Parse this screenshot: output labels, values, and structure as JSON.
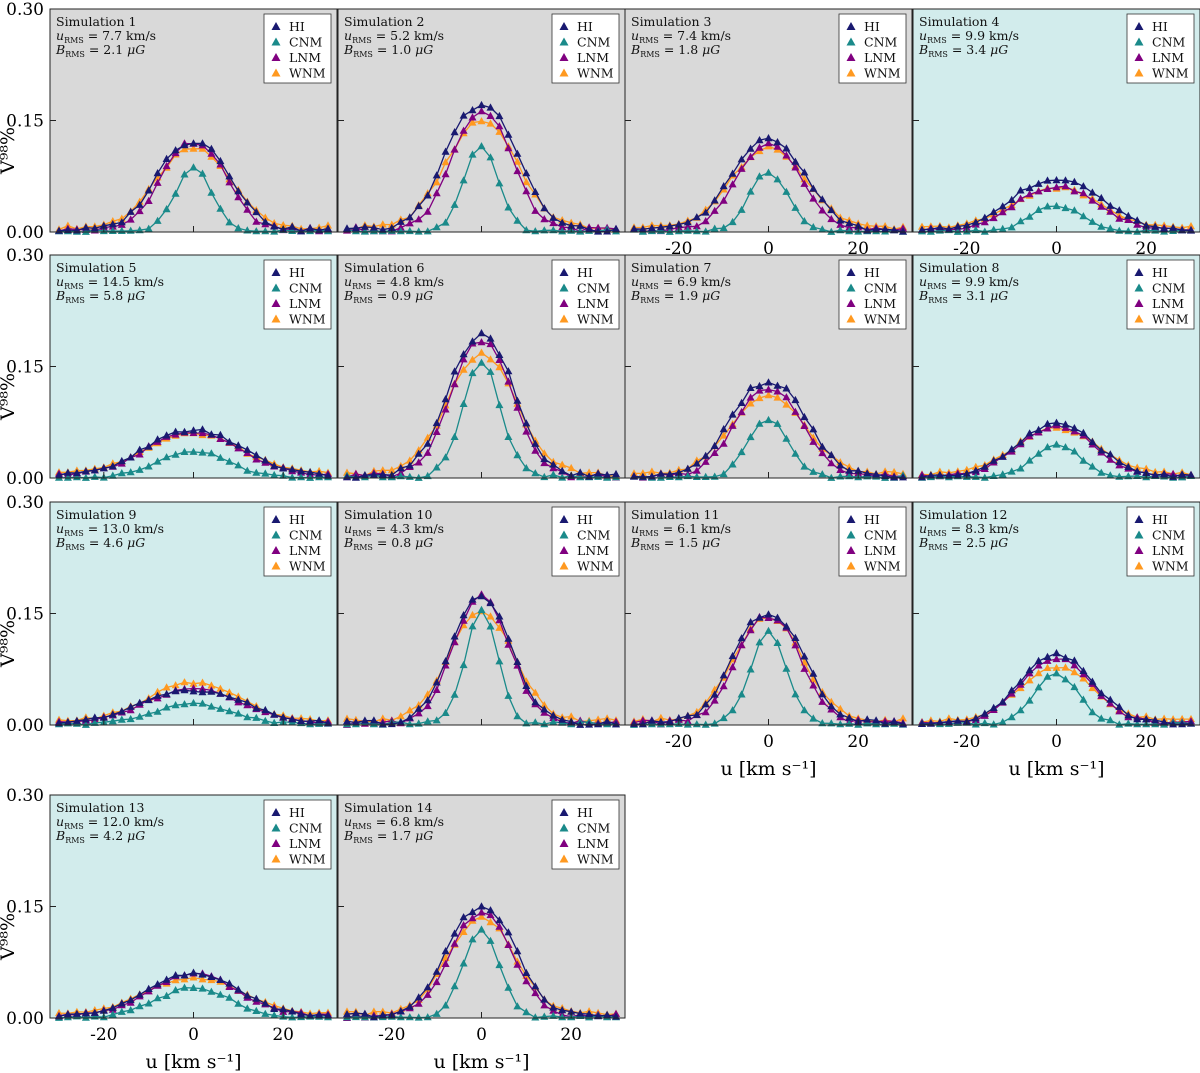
{
  "chart_data": {
    "type": "line",
    "figure_layout": "4-column grid of 14 panels",
    "x_range": [
      -32,
      32
    ],
    "y_range": [
      0,
      0.3
    ],
    "x_ticks": [
      -20,
      0,
      20
    ],
    "y_ticks": [
      0.0,
      0.15,
      0.3
    ],
    "x_tick_labels": [
      "-20",
      "0",
      "20"
    ],
    "y_tick_labels": [
      "0.00",
      "0.15",
      "0.30"
    ],
    "xlabel": "u [km s⁻¹]",
    "ylabel": "Ṽ⁹⁸%",
    "legend_position": "top-right",
    "legend_entries": [
      "HI",
      "CNM",
      "LNM",
      "WNM"
    ],
    "series_colors": {
      "HI": "#191970",
      "CNM": "#1a8a8a",
      "LNM": "#800080",
      "WNM": "#ff9920"
    },
    "panel_backgrounds": {
      "gray": "#d9d9d9",
      "cyan": "#d2ecec"
    },
    "annotation_labels": {
      "u": "u",
      "u_sub": "RMS",
      "b": "B",
      "b_sub": "RMS",
      "u_unit": "km/s",
      "b_unit": "μG"
    },
    "x_grid": [
      -30,
      -28,
      -26,
      -24,
      -22,
      -20,
      -18,
      -16,
      -14,
      -12,
      -10,
      -8,
      -6,
      -4,
      -2,
      0,
      2,
      4,
      6,
      8,
      10,
      12,
      14,
      16,
      18,
      20,
      22,
      24,
      26,
      28,
      30
    ],
    "panels": [
      {
        "title": "Simulation 1",
        "u_rms": "7.7",
        "b_rms": "2.1",
        "bg": "gray",
        "HI": {
          "amp": 0.118,
          "width": 16.5,
          "dip": 0.1,
          "sep": 7
        },
        "CNM": {
          "amp": 0.085,
          "width": 9.5,
          "dip": 0,
          "sep": 0
        },
        "LNM": {
          "amp": 0.115,
          "width": 15.0,
          "dip": 0.08,
          "sep": 6
        },
        "WNM": {
          "amp": 0.102,
          "width": 18.5,
          "dip": 0.03,
          "sep": 6
        }
      },
      {
        "title": "Simulation 2",
        "u_rms": "5.2",
        "b_rms": "1.0",
        "bg": "gray",
        "HI": {
          "amp": 0.162,
          "width": 16.5,
          "dip": 0.08,
          "sep": 7
        },
        "CNM": {
          "amp": 0.115,
          "width": 9.0,
          "dip": 0,
          "sep": 0
        },
        "LNM": {
          "amp": 0.15,
          "width": 14.0,
          "dip": 0.05,
          "sep": 6
        },
        "WNM": {
          "amp": 0.135,
          "width": 18.0,
          "dip": 0.02,
          "sep": 6
        }
      },
      {
        "title": "Simulation 3",
        "u_rms": "7.4",
        "b_rms": "1.8",
        "bg": "gray",
        "HI": {
          "amp": 0.115,
          "width": 17.5,
          "dip": 0.05,
          "sep": 7
        },
        "CNM": {
          "amp": 0.08,
          "width": 10.0,
          "dip": 0,
          "sep": 0
        },
        "LNM": {
          "amp": 0.108,
          "width": 15.5,
          "dip": 0.04,
          "sep": 6
        },
        "WNM": {
          "amp": 0.103,
          "width": 19.0,
          "dip": 0.02,
          "sep": 6
        }
      },
      {
        "title": "Simulation 4",
        "u_rms": "9.9",
        "b_rms": "3.4",
        "bg": "cyan",
        "HI": {
          "amp": 0.065,
          "width": 21.0,
          "dip": 0.1,
          "sep": 9
        },
        "CNM": {
          "amp": 0.035,
          "width": 13.0,
          "dip": 0,
          "sep": 0
        },
        "LNM": {
          "amp": 0.055,
          "width": 19.5,
          "dip": 0.05,
          "sep": 8
        },
        "WNM": {
          "amp": 0.05,
          "width": 21.0,
          "dip": 0.02,
          "sep": 8
        }
      },
      {
        "title": "Simulation 5",
        "u_rms": "14.5",
        "b_rms": "5.8",
        "bg": "cyan",
        "HI": {
          "amp": 0.06,
          "width": 26.0,
          "dip": 0.02,
          "sep": 6
        },
        "CNM": {
          "amp": 0.035,
          "width": 18.0,
          "dip": 0,
          "sep": 0
        },
        "LNM": {
          "amp": 0.058,
          "width": 25.0,
          "dip": 0.02,
          "sep": 6
        },
        "WNM": {
          "amp": 0.052,
          "width": 26.0,
          "dip": 0.01,
          "sep": 6
        }
      },
      {
        "title": "Simulation 6",
        "u_rms": "4.8",
        "b_rms": "0.9",
        "bg": "gray",
        "HI": {
          "amp": 0.18,
          "width": 16.0,
          "dip": 0.04,
          "sep": 6
        },
        "CNM": {
          "amp": 0.155,
          "width": 10.0,
          "dip": 0,
          "sep": 0
        },
        "LNM": {
          "amp": 0.17,
          "width": 14.5,
          "dip": 0.03,
          "sep": 6
        },
        "WNM": {
          "amp": 0.15,
          "width": 17.5,
          "dip": 0.01,
          "sep": 6
        }
      },
      {
        "title": "Simulation 7",
        "u_rms": "6.9",
        "b_rms": "1.9",
        "bg": "gray",
        "HI": {
          "amp": 0.123,
          "width": 17.5,
          "dip": 0.08,
          "sep": 7
        },
        "CNM": {
          "amp": 0.078,
          "width": 10.5,
          "dip": 0,
          "sep": 0
        },
        "LNM": {
          "amp": 0.112,
          "width": 16.0,
          "dip": 0.05,
          "sep": 6
        },
        "WNM": {
          "amp": 0.1,
          "width": 19.0,
          "dip": 0.02,
          "sep": 6
        }
      },
      {
        "title": "Simulation 8",
        "u_rms": "9.9",
        "b_rms": "3.1",
        "bg": "cyan",
        "HI": {
          "amp": 0.068,
          "width": 21.0,
          "dip": 0.02,
          "sep": 5
        },
        "CNM": {
          "amp": 0.045,
          "width": 12.0,
          "dip": 0,
          "sep": 0
        },
        "LNM": {
          "amp": 0.065,
          "width": 20.0,
          "dip": 0.02,
          "sep": 5
        },
        "WNM": {
          "amp": 0.06,
          "width": 21.5,
          "dip": 0.01,
          "sep": 5
        }
      },
      {
        "title": "Simulation 9",
        "u_rms": "13.0",
        "b_rms": "4.6",
        "bg": "cyan",
        "HI": {
          "amp": 0.045,
          "width": 26.0,
          "dip": 0.1,
          "sep": 7
        },
        "CNM": {
          "amp": 0.027,
          "width": 20.0,
          "dip": 0,
          "sep": 0
        },
        "LNM": {
          "amp": 0.045,
          "width": 25.0,
          "dip": 0.05,
          "sep": 6
        },
        "WNM": {
          "amp": 0.05,
          "width": 24.0,
          "dip": 0.01,
          "sep": 5
        }
      },
      {
        "title": "Simulation 10",
        "u_rms": "4.3",
        "b_rms": "0.8",
        "bg": "gray",
        "HI": {
          "amp": 0.163,
          "width": 15.0,
          "dip": 0.03,
          "sep": 5
        },
        "CNM": {
          "amp": 0.152,
          "width": 8.5,
          "dip": 0,
          "sep": 0
        },
        "LNM": {
          "amp": 0.16,
          "width": 14.0,
          "dip": 0.02,
          "sep": 5
        },
        "WNM": {
          "amp": 0.14,
          "width": 17.0,
          "dip": 0.01,
          "sep": 5
        }
      },
      {
        "title": "Simulation 11",
        "u_rms": "6.1",
        "b_rms": "1.5",
        "bg": "gray",
        "HI": {
          "amp": 0.143,
          "width": 16.0,
          "dip": 0.1,
          "sep": 7
        },
        "CNM": {
          "amp": 0.125,
          "width": 9.5,
          "dip": 0,
          "sep": 0
        },
        "LNM": {
          "amp": 0.138,
          "width": 15.0,
          "dip": 0.06,
          "sep": 6
        },
        "WNM": {
          "amp": 0.13,
          "width": 17.5,
          "dip": 0.02,
          "sep": 6
        }
      },
      {
        "title": "Simulation 12",
        "u_rms": "8.3",
        "b_rms": "2.5",
        "bg": "cyan",
        "HI": {
          "amp": 0.09,
          "width": 19.0,
          "dip": 0.03,
          "sep": 5
        },
        "CNM": {
          "amp": 0.068,
          "width": 11.5,
          "dip": 0,
          "sep": 0
        },
        "LNM": {
          "amp": 0.085,
          "width": 18.0,
          "dip": 0.02,
          "sep": 5
        },
        "WNM": {
          "amp": 0.07,
          "width": 19.5,
          "dip": 0.01,
          "sep": 5
        }
      },
      {
        "title": "Simulation 13",
        "u_rms": "12.0",
        "b_rms": "4.2",
        "bg": "cyan",
        "HI": {
          "amp": 0.055,
          "width": 24.0,
          "dip": 0.02,
          "sep": 6
        },
        "CNM": {
          "amp": 0.04,
          "width": 19.0,
          "dip": 0,
          "sep": 0
        },
        "LNM": {
          "amp": 0.055,
          "width": 23.0,
          "dip": 0.02,
          "sep": 6
        },
        "WNM": {
          "amp": 0.047,
          "width": 24.5,
          "dip": 0.01,
          "sep": 6
        }
      },
      {
        "title": "Simulation 14",
        "u_rms": "6.8",
        "b_rms": "1.7",
        "bg": "gray",
        "HI": {
          "amp": 0.142,
          "width": 16.5,
          "dip": 0.06,
          "sep": 6
        },
        "CNM": {
          "amp": 0.117,
          "width": 9.5,
          "dip": 0,
          "sep": 0
        },
        "LNM": {
          "amp": 0.13,
          "width": 15.0,
          "dip": 0.04,
          "sep": 6
        },
        "WNM": {
          "amp": 0.12,
          "width": 17.0,
          "dip": 0.02,
          "sep": 6
        }
      }
    ]
  }
}
